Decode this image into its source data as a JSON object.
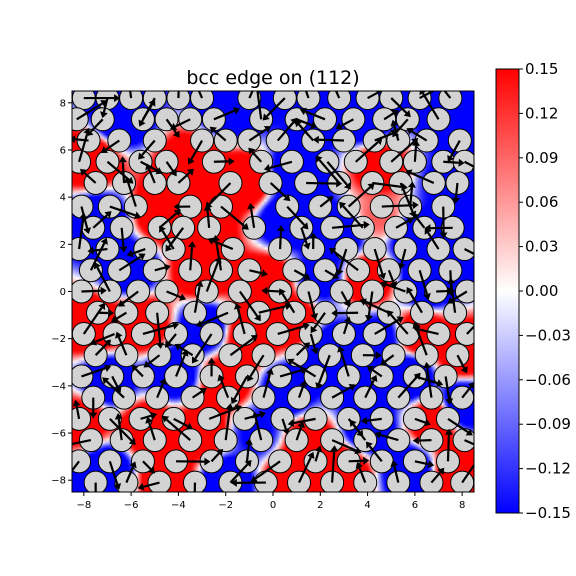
{
  "chart_data": {
    "type": "heatmap",
    "title": "bcc edge on (112)",
    "xlabel": "",
    "ylabel": "",
    "xlim": [
      -8.5,
      8.5
    ],
    "ylim": [
      -8.5,
      8.5
    ],
    "xticks": [
      -8,
      -6,
      -4,
      -2,
      0,
      2,
      4,
      6,
      8
    ],
    "yticks": [
      -8,
      -6,
      -4,
      -2,
      0,
      2,
      4,
      6,
      8
    ],
    "xtick_labels": [
      "−8",
      "−6",
      "−4",
      "−2",
      "0",
      "2",
      "4",
      "6",
      "8"
    ],
    "ytick_labels": [
      "−8",
      "−6",
      "−4",
      "−2",
      "0",
      "2",
      "4",
      "6",
      "8"
    ],
    "colormap": "bwr",
    "colorbar": {
      "vmin": -0.15,
      "vmax": 0.15,
      "ticks": [
        0.15,
        0.12,
        0.09,
        0.06,
        0.03,
        0.0,
        -0.03,
        -0.06,
        -0.09,
        -0.12,
        -0.15
      ],
      "tick_labels": [
        "0.15",
        "0.12",
        "0.09",
        "0.06",
        "0.03",
        "0.00",
        "−0.03",
        "−0.06",
        "−0.09",
        "−0.12",
        "−0.15"
      ]
    },
    "grid": false,
    "field_sources": [
      {
        "x": -6.5,
        "y": 7.3,
        "value": -0.15
      },
      {
        "x": -1.8,
        "y": 7.8,
        "value": -0.15
      },
      {
        "x": 3.8,
        "y": 7.4,
        "value": -0.15
      },
      {
        "x": 7.8,
        "y": 7.6,
        "value": -0.15
      },
      {
        "x": -7.7,
        "y": 5.6,
        "value": 0.15
      },
      {
        "x": -3.4,
        "y": 5.3,
        "value": 0.15
      },
      {
        "x": -1.2,
        "y": 4.6,
        "value": 0.15
      },
      {
        "x": 1.0,
        "y": 5.0,
        "value": -0.15
      },
      {
        "x": 4.5,
        "y": 5.2,
        "value": 0.12
      },
      {
        "x": 7.4,
        "y": 4.6,
        "value": -0.1
      },
      {
        "x": -7.3,
        "y": 3.0,
        "value": -0.15
      },
      {
        "x": -4.7,
        "y": 3.3,
        "value": 0.15
      },
      {
        "x": -3.0,
        "y": 2.6,
        "value": 0.15
      },
      {
        "x": 0.5,
        "y": 3.0,
        "value": -0.15
      },
      {
        "x": 2.8,
        "y": 2.4,
        "value": -0.15
      },
      {
        "x": 4.5,
        "y": 3.2,
        "value": 0.06
      },
      {
        "x": 6.0,
        "y": 2.2,
        "value": -0.15
      },
      {
        "x": 8.0,
        "y": 2.0,
        "value": -0.15
      },
      {
        "x": -6.0,
        "y": 1.0,
        "value": -0.15
      },
      {
        "x": -3.0,
        "y": 0.8,
        "value": 0.15
      },
      {
        "x": -0.2,
        "y": 0.4,
        "value": 0.15
      },
      {
        "x": 2.0,
        "y": 0.6,
        "value": -0.12
      },
      {
        "x": 4.0,
        "y": 0.5,
        "value": 0.15
      },
      {
        "x": 6.5,
        "y": 0.3,
        "value": -0.15
      },
      {
        "x": -7.6,
        "y": -1.5,
        "value": 0.15
      },
      {
        "x": -5.5,
        "y": -1.4,
        "value": 0.15
      },
      {
        "x": -2.9,
        "y": -1.5,
        "value": -0.15
      },
      {
        "x": -1.0,
        "y": -1.8,
        "value": 0.15
      },
      {
        "x": 0.8,
        "y": -1.2,
        "value": 0.15
      },
      {
        "x": 2.5,
        "y": -2.5,
        "value": -0.15
      },
      {
        "x": 4.5,
        "y": -2.0,
        "value": -0.12
      },
      {
        "x": 6.2,
        "y": -1.8,
        "value": 0.15
      },
      {
        "x": 8.0,
        "y": -2.6,
        "value": 0.15
      },
      {
        "x": -7.0,
        "y": -3.8,
        "value": -0.15
      },
      {
        "x": -4.2,
        "y": -3.5,
        "value": -0.15
      },
      {
        "x": -2.0,
        "y": -3.8,
        "value": 0.15
      },
      {
        "x": 0.6,
        "y": -4.2,
        "value": -0.15
      },
      {
        "x": 3.5,
        "y": -4.0,
        "value": -0.1
      },
      {
        "x": 5.8,
        "y": -3.6,
        "value": -0.15
      },
      {
        "x": -8.0,
        "y": -5.5,
        "value": 0.12
      },
      {
        "x": -5.3,
        "y": -5.8,
        "value": 0.15
      },
      {
        "x": -3.0,
        "y": -6.0,
        "value": 0.15
      },
      {
        "x": -0.7,
        "y": -6.0,
        "value": -0.1
      },
      {
        "x": 1.6,
        "y": -6.4,
        "value": 0.15
      },
      {
        "x": 4.0,
        "y": -5.8,
        "value": -0.15
      },
      {
        "x": 6.8,
        "y": -5.5,
        "value": 0.15
      },
      {
        "x": 8.0,
        "y": -4.8,
        "value": -0.15
      },
      {
        "x": -7.0,
        "y": -7.6,
        "value": -0.15
      },
      {
        "x": -4.5,
        "y": -7.8,
        "value": 0.15
      },
      {
        "x": -2.0,
        "y": -8.0,
        "value": -0.15
      },
      {
        "x": 0.8,
        "y": -7.8,
        "value": 0.15
      },
      {
        "x": 3.0,
        "y": -7.6,
        "value": 0.15
      },
      {
        "x": 5.8,
        "y": -7.6,
        "value": -0.15
      },
      {
        "x": 7.8,
        "y": -7.6,
        "value": 0.15
      }
    ],
    "atom_rows": [
      {
        "y": 8.2,
        "x": [
          -8.0,
          -7.0,
          -6.0,
          -5.0,
          -4.0,
          -3.0,
          -1.0,
          0.5,
          1.5,
          2.8,
          4.0,
          5.0,
          6.2,
          7.5
        ]
      },
      {
        "y": 7.3,
        "x": [
          -8.3,
          -7.2,
          -5.5,
          -4.5,
          -3.5,
          -2.5,
          -0.5,
          1.0,
          2.2,
          3.4,
          4.7,
          5.7,
          7.0
        ]
      },
      {
        "y": 6.4,
        "x": [
          -7.8,
          -6.5,
          -5.0,
          -3.0,
          -2.0,
          -1.0,
          0.2,
          1.7,
          3.0,
          4.3,
          5.3,
          6.5,
          7.9
        ]
      },
      {
        "y": 5.5,
        "x": [
          -8.2,
          -7.0,
          -5.6,
          -4.5,
          -2.5,
          -0.5,
          0.8,
          2.3,
          3.5,
          5.0,
          6.0,
          7.2,
          8.1
        ]
      },
      {
        "y": 4.6,
        "x": [
          -7.5,
          -6.3,
          -5.0,
          -4.0,
          -1.8,
          -0.1,
          1.4,
          2.8,
          4.2,
          5.4,
          6.8,
          7.8
        ]
      },
      {
        "y": 3.6,
        "x": [
          -8.1,
          -6.9,
          -5.8,
          -3.5,
          -2.2,
          0.6,
          2.0,
          3.2,
          4.6,
          5.8,
          7.2
        ]
      },
      {
        "y": 2.7,
        "x": [
          -7.6,
          -6.4,
          -4.8,
          -3.8,
          -2.7,
          -0.8,
          1.2,
          2.5,
          3.8,
          5.2,
          6.4,
          7.6
        ]
      },
      {
        "y": 1.8,
        "x": [
          -8.2,
          -7.0,
          -5.4,
          -4.2,
          -1.7,
          0.3,
          1.7,
          3.1,
          4.3,
          5.6,
          7.0,
          8.1
        ]
      },
      {
        "y": 0.9,
        "x": [
          -7.7,
          -6.5,
          -5.0,
          -3.5,
          -2.2,
          -1.0,
          0.9,
          2.2,
          3.6,
          4.9,
          6.2,
          7.5
        ]
      },
      {
        "y": 0.0,
        "x": [
          -8.1,
          -6.9,
          -5.7,
          -4.5,
          -2.8,
          -1.4,
          0.3,
          1.5,
          2.9,
          4.2,
          5.6,
          6.9,
          8.2
        ]
      },
      {
        "y": -0.9,
        "x": [
          -7.4,
          -6.2,
          -4.9,
          -3.3,
          -1.9,
          -0.6,
          0.9,
          2.2,
          3.6,
          4.9,
          6.3,
          7.7
        ]
      },
      {
        "y": -1.8,
        "x": [
          -8.0,
          -6.7,
          -5.5,
          -4.1,
          -2.6,
          -1.2,
          0.2,
          1.6,
          3.0,
          4.3,
          5.7,
          7.0,
          8.2
        ]
      },
      {
        "y": -2.7,
        "x": [
          -7.5,
          -6.2,
          -4.8,
          -3.4,
          -1.8,
          -0.4,
          1.0,
          2.4,
          3.8,
          5.1,
          6.5,
          7.8
        ]
      },
      {
        "y": -3.6,
        "x": [
          -8.1,
          -6.8,
          -5.5,
          -4.1,
          -2.6,
          -1.1,
          0.3,
          1.8,
          3.2,
          4.6,
          6.0,
          7.3
        ]
      },
      {
        "y": -4.5,
        "x": [
          -7.6,
          -6.3,
          -4.9,
          -3.4,
          -1.9,
          -0.4,
          1.1,
          2.5,
          3.9,
          5.3,
          6.7,
          8.0
        ]
      },
      {
        "y": -5.4,
        "x": [
          -8.2,
          -6.9,
          -5.6,
          -4.2,
          -2.7,
          -1.2,
          0.4,
          1.8,
          3.2,
          4.6,
          6.0,
          7.4
        ]
      },
      {
        "y": -6.3,
        "x": [
          -7.7,
          -6.4,
          -5.0,
          -3.5,
          -2.0,
          -0.5,
          1.0,
          2.5,
          3.9,
          5.3,
          6.7,
          8.1
        ]
      },
      {
        "y": -7.2,
        "x": [
          -8.2,
          -6.9,
          -5.5,
          -4.1,
          -2.6,
          -1.1,
          0.3,
          1.8,
          3.2,
          4.6,
          6.0,
          7.4
        ]
      },
      {
        "y": -8.1,
        "x": [
          -7.5,
          -6.2,
          -4.8,
          -3.3,
          -1.8,
          -0.3,
          1.1,
          2.5,
          3.9,
          5.3,
          6.7,
          8.0
        ]
      }
    ]
  }
}
